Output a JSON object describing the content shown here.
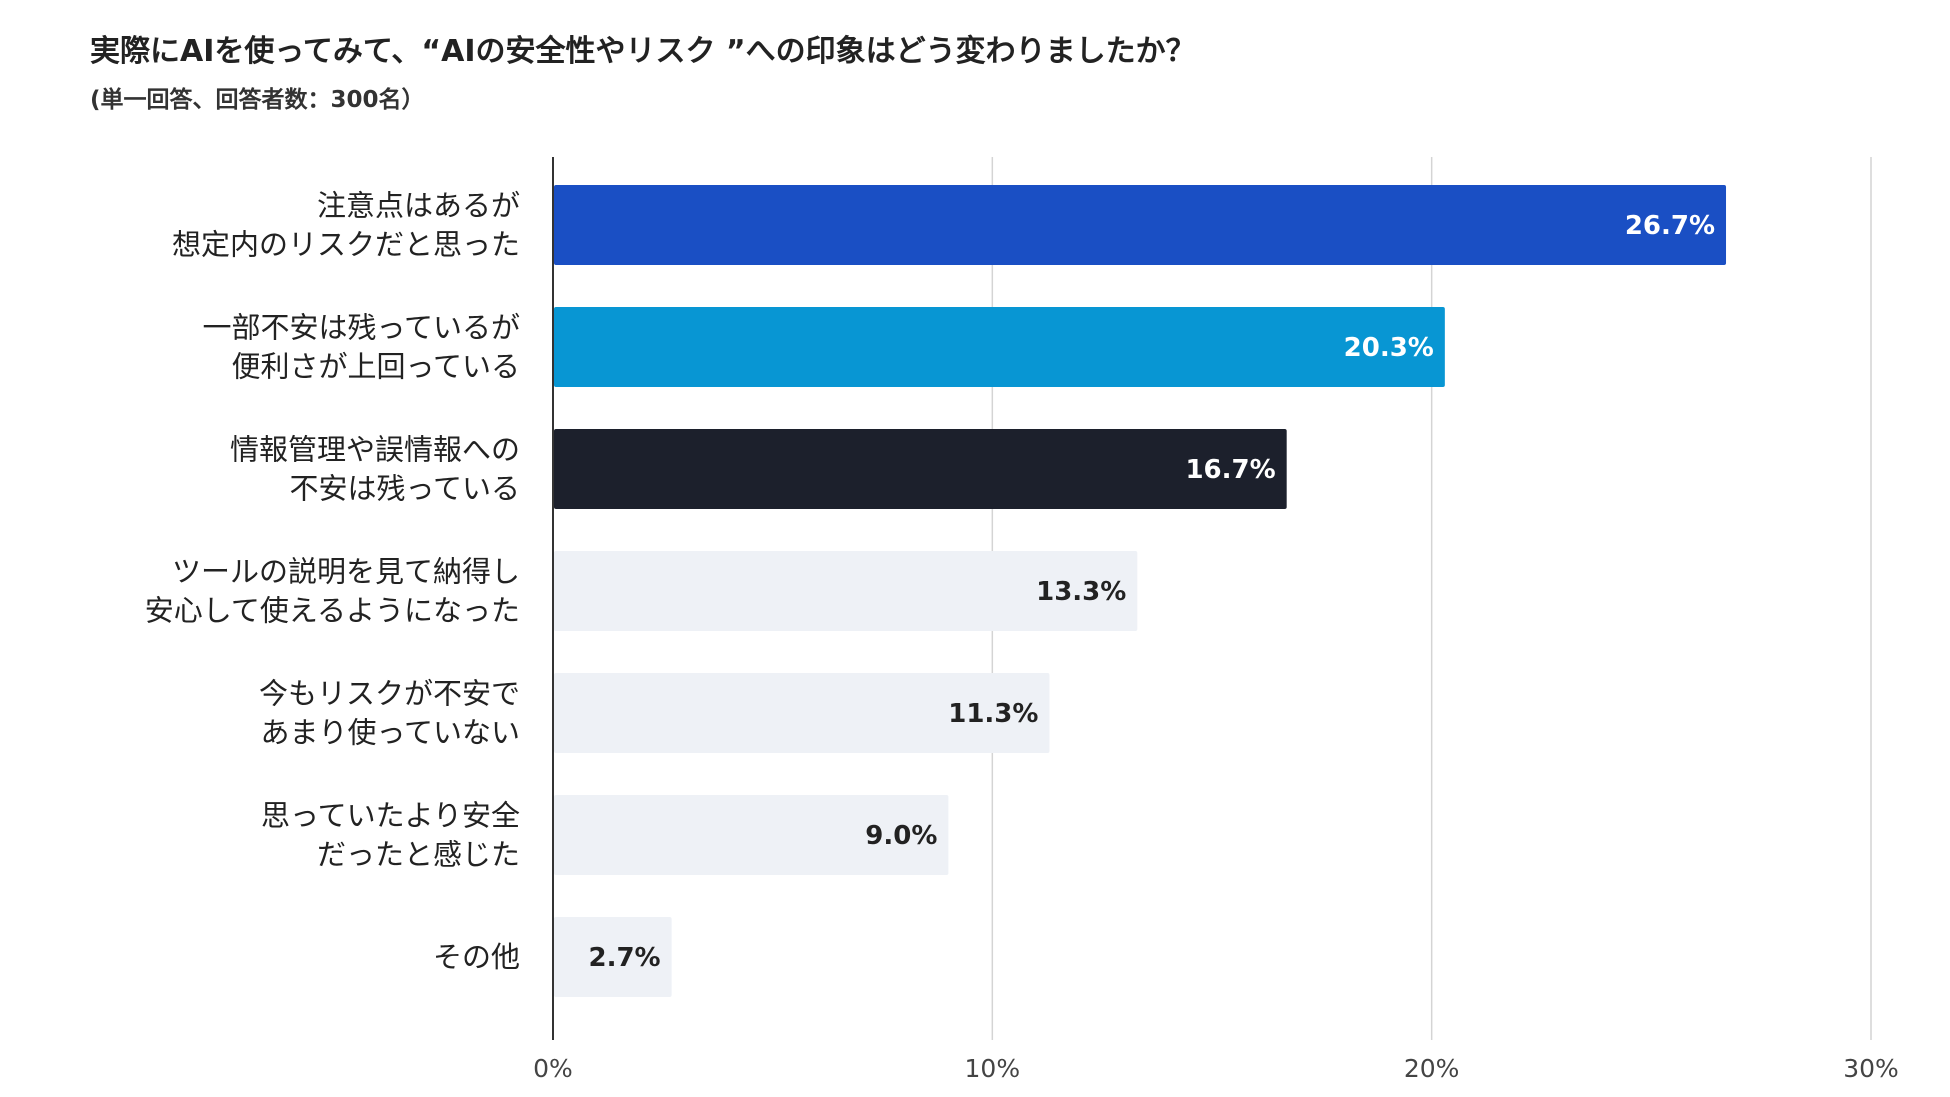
{
  "chart_data": {
    "type": "bar",
    "orientation": "horizontal",
    "title": "実際にAIを使ってみて、“AIの安全性やリスク ”への印象はどう変わりましたか？",
    "subtitle": "(単一回答、回答者数：300名）",
    "categories": [
      [
        "注意点はあるが",
        "想定内のリスクだと思った"
      ],
      [
        "一部不安は残っているが",
        "便利さが上回っている"
      ],
      [
        "情報管理や誤情報への",
        "不安は残っている"
      ],
      [
        "ツールの説明を見て納得し",
        "安心して使えるようになった"
      ],
      [
        "今もリスクが不安で",
        "あまり使っていない"
      ],
      [
        "思っていたより安全",
        "だったと感じた"
      ],
      [
        "その他"
      ]
    ],
    "values": [
      26.7,
      20.3,
      16.7,
      13.3,
      11.3,
      9.0,
      2.7
    ],
    "value_labels": [
      "26.7%",
      "20.3%",
      "16.7%",
      "13.3%",
      "11.3%",
      "9.0%",
      "2.7%"
    ],
    "bar_colors": [
      "#1a4fc4",
      "#0896d3",
      "#1c202c",
      "#eef1f6",
      "#eef1f6",
      "#eef1f6",
      "#eef1f6"
    ],
    "label_colors": [
      "#ffffff",
      "#ffffff",
      "#ffffff",
      "#222222",
      "#222222",
      "#222222",
      "#222222"
    ],
    "xlim": [
      0,
      30
    ],
    "xticks": [
      0,
      10,
      20,
      30
    ],
    "xtick_labels": [
      "0%",
      "10%",
      "20%",
      "30%"
    ],
    "grid": true,
    "xlabel": "",
    "ylabel": ""
  }
}
